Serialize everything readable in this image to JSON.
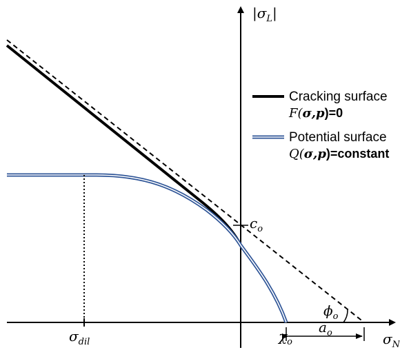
{
  "axes": {
    "y_label": "|σL|",
    "x_label": "σN"
  },
  "annotations": {
    "c_o": "co",
    "sigma_dil": "σdil",
    "chi_o": "χo",
    "a_o": "ao",
    "phi_o": "ϕo"
  },
  "legend": {
    "cracking": {
      "line1": "Cracking surface",
      "line2_prefix": "F(",
      "line2_bold": "σ,p",
      "line2_suffix": ")=0"
    },
    "potential": {
      "line1": "Potential surface",
      "line2_prefix": "Q(",
      "line2_bold": "σ,p",
      "line2_suffix": ")=constant"
    }
  },
  "colors": {
    "cracking_surface": "#000000",
    "potential_surface_fill": "#ffffff",
    "potential_surface_edge": "#2f5597",
    "axes": "#000000",
    "dashed_asymptote": "#000000"
  }
}
